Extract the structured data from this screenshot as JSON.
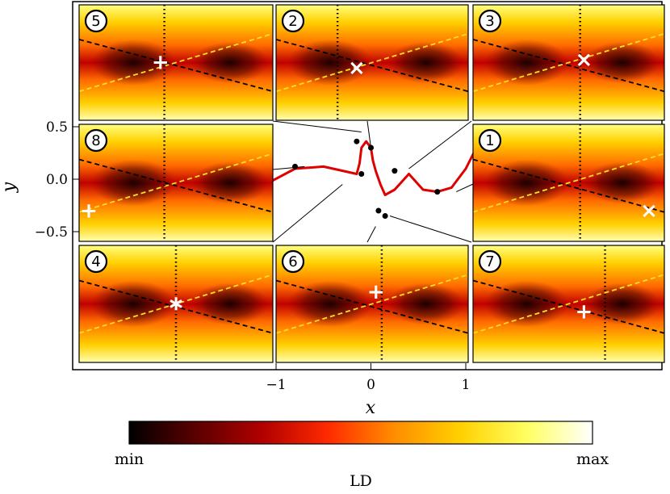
{
  "chart_data": {
    "type": "line",
    "xlabel": "x",
    "ylabel": "y",
    "xlim": [
      -1,
      1
    ],
    "ylim": [
      -0.5,
      0.5
    ],
    "x_ticks": [
      "−1",
      "0",
      "1"
    ],
    "y_ticks": [
      "0.5",
      "0.0",
      "−0.5"
    ],
    "curve_color": "#e00000",
    "curve_points_x": [
      -1.05,
      -0.8,
      -0.5,
      -0.25,
      -0.15,
      -0.12,
      -0.1,
      -0.05,
      0.0,
      0.02,
      0.05,
      0.1,
      0.15,
      0.25,
      0.4,
      0.55,
      0.7,
      0.85,
      1.0,
      1.1
    ],
    "curve_points_y": [
      -0.02,
      0.1,
      0.12,
      0.07,
      0.05,
      0.15,
      0.3,
      0.36,
      0.3,
      0.18,
      0.08,
      -0.05,
      -0.15,
      -0.1,
      0.05,
      -0.1,
      -0.12,
      -0.08,
      0.1,
      0.28
    ],
    "marked_points": [
      {
        "panel": "5",
        "x": -0.15,
        "y": 0.36
      },
      {
        "panel": "2",
        "x": 0.0,
        "y": 0.3
      },
      {
        "panel": "3",
        "x": 0.25,
        "y": 0.08
      },
      {
        "panel": "8",
        "x": -0.8,
        "y": 0.12
      },
      {
        "panel": "1",
        "x": 0.7,
        "y": -0.12
      },
      {
        "panel": "4",
        "x": -0.1,
        "y": 0.05
      },
      {
        "panel": "6",
        "x": 0.08,
        "y": -0.3
      },
      {
        "panel": "7",
        "x": 0.15,
        "y": -0.35
      }
    ],
    "insets": [
      {
        "label": "5",
        "marker": "+"
      },
      {
        "label": "2",
        "marker": "×"
      },
      {
        "label": "3",
        "marker": "×"
      },
      {
        "label": "8",
        "marker": "+"
      },
      {
        "label": "1",
        "marker": "×"
      },
      {
        "label": "4",
        "marker": "∗"
      },
      {
        "label": "6",
        "marker": "+"
      },
      {
        "label": "7",
        "marker": "+"
      }
    ],
    "colorbar": {
      "label": "LD",
      "min_label": "min",
      "max_label": "max",
      "colors": [
        "#000000",
        "#5a0000",
        "#b00000",
        "#ff2a00",
        "#ff8c00",
        "#ffd000",
        "#ffff60",
        "#ffffff"
      ]
    }
  }
}
